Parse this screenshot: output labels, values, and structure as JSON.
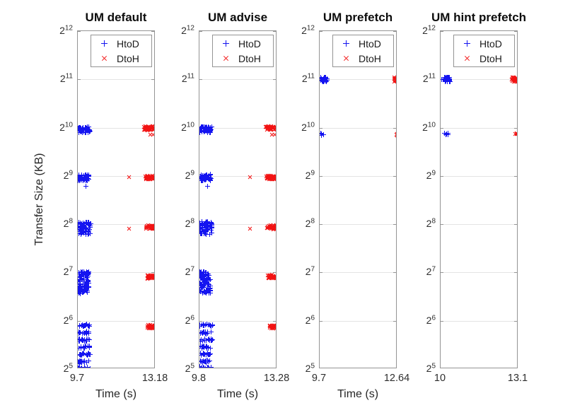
{
  "figure": {
    "ylabel": "Transfer Size (KB)",
    "xlabel": "Time (s)",
    "y_tick_exponents": [
      12,
      11,
      10,
      9,
      8,
      7,
      6,
      5
    ],
    "y_range_exponents": [
      5,
      12
    ],
    "y_scale": "log2",
    "grid": "horizontal-only",
    "legend": {
      "position": "top-inside",
      "items": [
        {
          "label": "HtoD",
          "marker": "plus",
          "color_key": "htod"
        },
        {
          "label": "DtoH",
          "marker": "cross",
          "color_key": "dtoh"
        }
      ]
    },
    "colors": {
      "htod": "#1414f0",
      "dtoh": "#f21414",
      "grid": "#e4e4e4",
      "axis": "#949494",
      "text": "#2e2e2e"
    }
  },
  "chart_data": [
    {
      "type": "scatter",
      "title": "UM default",
      "xlabel": "Time (s)",
      "show_xlabel": true,
      "x_range": [
        9.7,
        13.18
      ],
      "x_tick_labels": [
        "9.7",
        "13.18"
      ],
      "series": [
        {
          "name": "HtoD",
          "marker": "plus",
          "color_key": "htod",
          "clusters": [
            {
              "x": [
                9.72,
                10.26
              ],
              "y": [
                9.9,
                10.02
              ],
              "n": 55
            },
            {
              "x": [
                9.72,
                10.22
              ],
              "y": [
                8.9,
                9.03
              ],
              "n": 50
            },
            {
              "x": [
                9.71,
                10.27
              ],
              "y": [
                7.79,
                8.05
              ],
              "n": 70
            },
            {
              "x": [
                9.71,
                10.2
              ],
              "y": [
                6.56,
                7.02
              ],
              "n": 95
            },
            {
              "x": [
                9.72,
                10.28
              ],
              "y": [
                5.88,
                5.93
              ],
              "n": 16
            },
            {
              "x": [
                9.72,
                10.23
              ],
              "y": [
                5.73,
                5.78
              ],
              "n": 15
            },
            {
              "x": [
                9.72,
                10.3
              ],
              "y": [
                5.58,
                5.63
              ],
              "n": 16
            },
            {
              "x": [
                9.72,
                10.24
              ],
              "y": [
                5.43,
                5.48
              ],
              "n": 15
            },
            {
              "x": [
                9.72,
                10.28
              ],
              "y": [
                5.28,
                5.33
              ],
              "n": 15
            },
            {
              "x": [
                9.72,
                10.21
              ],
              "y": [
                5.13,
                5.18
              ],
              "n": 14
            },
            {
              "x": [
                9.72,
                10.26
              ],
              "y": [
                4.99,
                5.05
              ],
              "n": 14
            }
          ],
          "points": [
            [
              10.05,
              8.78
            ]
          ]
        },
        {
          "name": "DtoH",
          "marker": "cross",
          "color_key": "dtoh",
          "clusters": [
            {
              "x": [
                12.66,
                13.17
              ],
              "y": [
                9.95,
                10.03
              ],
              "n": 45
            },
            {
              "x": [
                12.7,
                13.17
              ],
              "y": [
                8.93,
                9.01
              ],
              "n": 40
            },
            {
              "x": [
                12.72,
                13.17
              ],
              "y": [
                7.9,
                7.98
              ],
              "n": 34
            },
            {
              "x": [
                12.76,
                13.16
              ],
              "y": [
                6.87,
                6.95
              ],
              "n": 30
            },
            {
              "x": [
                12.8,
                13.16
              ],
              "y": [
                5.84,
                5.91
              ],
              "n": 28
            }
          ],
          "points": [
            [
              12.94,
              9.85
            ],
            [
              13.07,
              9.85
            ],
            [
              12.0,
              8.97
            ],
            [
              12.0,
              7.91
            ]
          ]
        }
      ]
    },
    {
      "type": "scatter",
      "title": "UM advise",
      "xlabel": "Time (s)",
      "show_xlabel": true,
      "x_range": [
        9.8,
        13.28
      ],
      "x_tick_labels": [
        "9.8",
        "13.28"
      ],
      "series": [
        {
          "name": "HtoD",
          "marker": "plus",
          "color_key": "htod",
          "clusters": [
            {
              "x": [
                9.82,
                10.36
              ],
              "y": [
                9.9,
                10.02
              ],
              "n": 55
            },
            {
              "x": [
                9.82,
                10.32
              ],
              "y": [
                8.9,
                9.03
              ],
              "n": 50
            },
            {
              "x": [
                9.81,
                10.37
              ],
              "y": [
                7.79,
                8.05
              ],
              "n": 70
            },
            {
              "x": [
                9.81,
                10.3
              ],
              "y": [
                6.56,
                7.02
              ],
              "n": 95
            },
            {
              "x": [
                9.82,
                10.38
              ],
              "y": [
                5.88,
                5.93
              ],
              "n": 16
            },
            {
              "x": [
                9.82,
                10.33
              ],
              "y": [
                5.73,
                5.78
              ],
              "n": 15
            },
            {
              "x": [
                9.82,
                10.4
              ],
              "y": [
                5.58,
                5.63
              ],
              "n": 16
            },
            {
              "x": [
                9.82,
                10.34
              ],
              "y": [
                5.43,
                5.48
              ],
              "n": 15
            },
            {
              "x": [
                9.82,
                10.38
              ],
              "y": [
                5.28,
                5.33
              ],
              "n": 15
            },
            {
              "x": [
                9.82,
                10.31
              ],
              "y": [
                5.13,
                5.18
              ],
              "n": 14
            },
            {
              "x": [
                9.82,
                10.36
              ],
              "y": [
                4.99,
                5.05
              ],
              "n": 14
            }
          ],
          "points": [
            [
              10.15,
              8.78
            ]
          ]
        },
        {
          "name": "DtoH",
          "marker": "cross",
          "color_key": "dtoh",
          "clusters": [
            {
              "x": [
                12.76,
                13.27
              ],
              "y": [
                9.95,
                10.03
              ],
              "n": 45
            },
            {
              "x": [
                12.8,
                13.27
              ],
              "y": [
                8.93,
                9.01
              ],
              "n": 40
            },
            {
              "x": [
                12.82,
                13.27
              ],
              "y": [
                7.9,
                7.98
              ],
              "n": 34
            },
            {
              "x": [
                12.86,
                13.26
              ],
              "y": [
                6.87,
                6.95
              ],
              "n": 30
            },
            {
              "x": [
                12.9,
                13.26
              ],
              "y": [
                5.84,
                5.91
              ],
              "n": 28
            }
          ],
          "points": [
            [
              13.04,
              9.85
            ],
            [
              13.17,
              9.85
            ],
            [
              12.05,
              8.97
            ],
            [
              12.05,
              7.91
            ]
          ]
        }
      ]
    },
    {
      "type": "scatter",
      "title": "UM prefetch",
      "xlabel": "Time (s)",
      "show_xlabel": true,
      "x_range": [
        9.7,
        12.64
      ],
      "x_tick_labels": [
        "9.7",
        "12.64"
      ],
      "series": [
        {
          "name": "HtoD",
          "marker": "plus",
          "color_key": "htod",
          "clusters": [
            {
              "x": [
                9.74,
                9.98
              ],
              "y": [
                10.95,
                11.05
              ],
              "n": 40
            },
            {
              "x": [
                9.73,
                9.92
              ],
              "y": [
                9.84,
                9.89
              ],
              "n": 5
            }
          ],
          "points": []
        },
        {
          "name": "DtoH",
          "marker": "cross",
          "color_key": "dtoh",
          "clusters": [
            {
              "x": [
                12.51,
                12.64
              ],
              "y": [
                10.96,
                11.04
              ],
              "n": 20
            },
            {
              "x": [
                12.56,
                12.64
              ],
              "y": [
                9.84,
                9.88
              ],
              "n": 4
            }
          ],
          "points": []
        }
      ]
    },
    {
      "type": "scatter",
      "title": "UM hint prefetch",
      "xlabel": "",
      "show_xlabel": false,
      "x_range": [
        10,
        13.1
      ],
      "x_tick_labels": [
        "10",
        "13.1"
      ],
      "series": [
        {
          "name": "HtoD",
          "marker": "plus",
          "color_key": "htod",
          "clusters": [
            {
              "x": [
                10.13,
                10.38
              ],
              "y": [
                10.95,
                11.05
              ],
              "n": 40
            },
            {
              "x": [
                10.14,
                10.33
              ],
              "y": [
                9.84,
                9.89
              ],
              "n": 5
            }
          ],
          "points": [
            [
              10.04,
              11.0
            ]
          ]
        },
        {
          "name": "DtoH",
          "marker": "cross",
          "color_key": "dtoh",
          "clusters": [
            {
              "x": [
                12.84,
                13.09
              ],
              "y": [
                10.95,
                11.04
              ],
              "n": 24
            },
            {
              "x": [
                12.97,
                13.07
              ],
              "y": [
                9.86,
                9.9
              ],
              "n": 4
            }
          ],
          "points": []
        }
      ]
    }
  ]
}
